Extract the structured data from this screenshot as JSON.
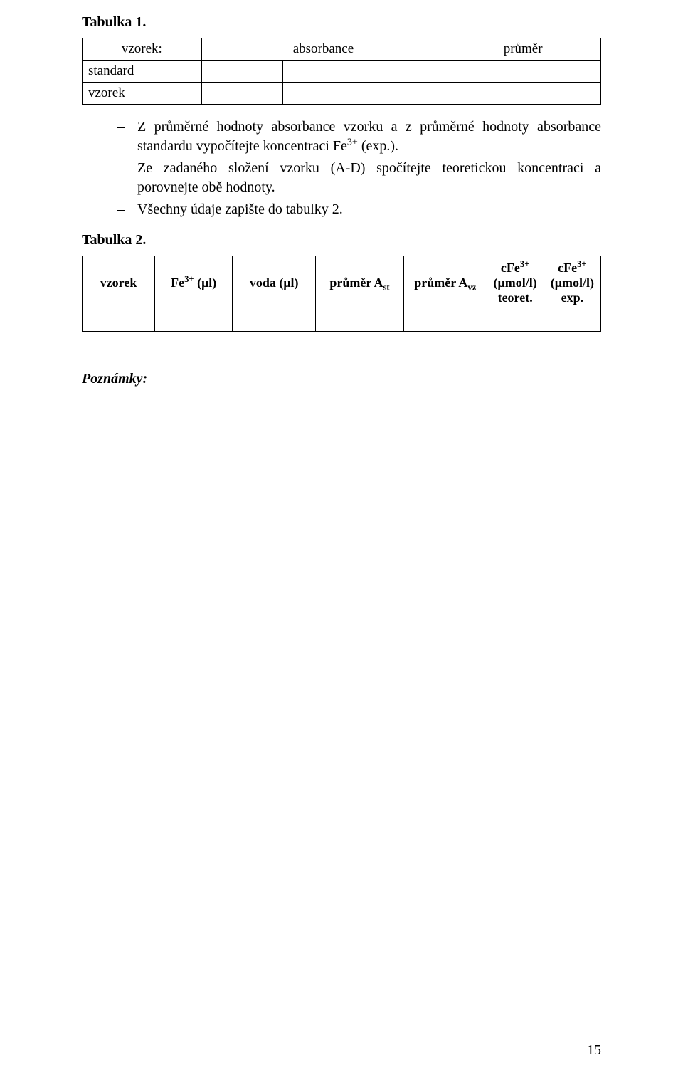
{
  "tabulka1": {
    "caption": "Tabulka 1.",
    "header_vzorek": "vzorek:",
    "header_absorbance": "absorbance",
    "header_prumer": "průměr",
    "row1_label": "standard",
    "row2_label": "vzorek"
  },
  "list": {
    "item1_html": "Z průměrné hodnoty absorbance vzorku a z průměrné hodnoty absorbance standardu vypočítejte koncentraci Fe<sup>3+</sup> (exp.).",
    "item2_html": "Ze zadaného složení vzorku (A-D) spočítejte teoretickou koncentraci a porovnejte obě hodnoty.",
    "item3_html": "Všechny údaje zapište do tabulky 2."
  },
  "tabulka2": {
    "caption": "Tabulka 2.",
    "h_vzorek": "vzorek",
    "h_fe_html": "Fe<sup>3+</sup> (μl)",
    "h_voda": "voda (μl)",
    "h_ast_html": "průměr A<sub>st</sub>",
    "h_avz_html": "průměr A<sub>vz</sub>",
    "h_cfe_teor_html": "cFe<sup>3+</sup><br>(μmol/l)<br>teoret.",
    "h_cfe_exp_html": "cFe<sup>3+</sup><br>(μmol/l)<br>exp."
  },
  "notes_label": "Poznámky:",
  "page_number": "15",
  "colors": {
    "text": "#000000",
    "background": "#ffffff",
    "border": "#000000"
  },
  "fonts": {
    "family": "Times New Roman",
    "body_size_pt": 15,
    "caption_weight": "bold"
  }
}
